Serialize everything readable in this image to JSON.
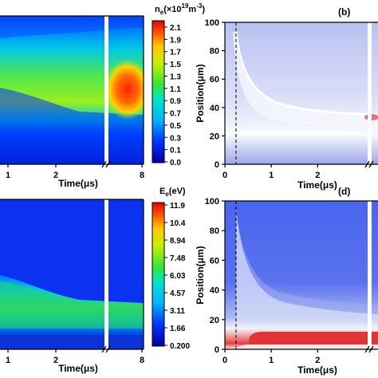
{
  "figure": {
    "panel_labels": [
      "(b)",
      "(d)"
    ]
  },
  "chart_data": [
    {
      "panel": "a",
      "type": "heatmap",
      "quantity": "electron density",
      "colorbar_title": "n_e(×10^19 m^-3)",
      "colorbar_title_main": "n",
      "colorbar_title_sub": "e",
      "colorbar_title_rest": "(×10",
      "colorbar_title_exp1": "19",
      "colorbar_title_mid": "m",
      "colorbar_title_exp2": "-3",
      "colorbar_title_end": ")",
      "colorbar_ticks": [
        "2.1",
        "1.9",
        "1.7",
        "1.5",
        "1.3",
        "1.1",
        "0.9",
        "0.7",
        "0.5",
        "0.3",
        "0.1",
        "0.0"
      ],
      "colorbar_range": [
        0.0,
        2.2
      ],
      "colormap": "rainbow (blue to red)",
      "xlabel": "Time(μs)",
      "x_ticks": [
        "1",
        "2",
        "8"
      ],
      "xlim": [
        0.6,
        8
      ],
      "x_axis_break": true,
      "ylim": [
        0,
        100
      ],
      "bands": [
        {
          "description": "dense plasma layer",
          "time_us": [
            0.6,
            3.0
          ],
          "position_um": [
            36,
            88
          ],
          "peak": 1.2
        },
        {
          "description": "after break",
          "time_us": [
            7.0,
            8.0
          ],
          "position_um": [
            30,
            92
          ],
          "peak": 2.0
        }
      ]
    },
    {
      "panel": "b",
      "type": "heatmap",
      "panel_label": "(b)",
      "colormap": "blue-white-red",
      "xlabel": "Time(μs)",
      "ylabel": "Position(μm)",
      "x_ticks": [
        "0",
        "1",
        "2"
      ],
      "y_ticks": [
        "0",
        "20",
        "40",
        "60",
        "80",
        "100"
      ],
      "xlim": [
        0,
        3.3
      ],
      "ylim": [
        0,
        100
      ],
      "x_axis_break": true,
      "dashed_line_x": 0.2,
      "features": [
        {
          "description": "white boundary curve",
          "start": [
            0.25,
            95
          ],
          "end": [
            3.3,
            33
          ]
        },
        {
          "description": "red spot near break",
          "time_us": 3.1,
          "position_um": 33
        }
      ]
    },
    {
      "panel": "c",
      "type": "heatmap",
      "quantity": "electron energy",
      "colorbar_title_main": "E",
      "colorbar_title_sub": "e",
      "colorbar_title_rest": "(eV)",
      "colorbar_ticks": [
        "11.9",
        "10.4",
        "8.94",
        "7.48",
        "6.03",
        "4.57",
        "3.11",
        "1.66",
        "0.200"
      ],
      "colorbar_range": [
        0.2,
        11.9
      ],
      "colormap": "rainbow (blue to red)",
      "xlabel": "Time(μs)",
      "x_ticks": [
        "1",
        "2",
        "8"
      ],
      "xlim": [
        0.6,
        8
      ],
      "x_axis_break": true,
      "ylim": [
        0,
        100
      ],
      "bands": [
        {
          "description": "cyan-green layer",
          "time_us": [
            0.6,
            3.0
          ],
          "position_um": [
            5,
            38
          ],
          "peak": 5.5
        }
      ]
    },
    {
      "panel": "d",
      "type": "heatmap",
      "panel_label": "(d)",
      "colormap": "blue-white-red",
      "xlabel": "Time(μs)",
      "ylabel": "Position(μm)",
      "x_ticks": [
        "0",
        "1",
        "2"
      ],
      "y_ticks": [
        "0",
        "20",
        "40",
        "60",
        "80",
        "100"
      ],
      "xlim": [
        0,
        3.3
      ],
      "ylim": [
        0,
        100
      ],
      "x_axis_break": true,
      "dashed_line_x": 0.2,
      "features": [
        {
          "description": "red layer near electrode",
          "time_us": [
            0.5,
            3.3
          ],
          "position_um": [
            2,
            12
          ]
        }
      ]
    }
  ]
}
